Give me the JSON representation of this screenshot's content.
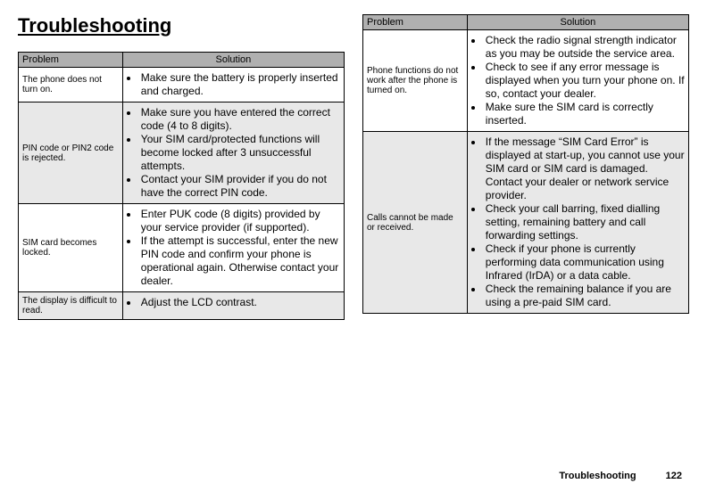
{
  "title": "Troubleshooting",
  "footer": {
    "label": "Troubleshooting",
    "page": "122"
  },
  "table": {
    "headers": {
      "problem": "Problem",
      "solution": "Solution"
    },
    "col_widths": {
      "problem": "32%",
      "solution": "68%"
    }
  },
  "rows_left": [
    {
      "problem": "The phone does not turn on.",
      "shaded": false,
      "items": [
        "Make sure the battery is properly inserted and charged."
      ]
    },
    {
      "problem": "PIN code or PIN2 code is rejected.",
      "shaded": true,
      "items": [
        "Make sure you have entered the correct code (4 to 8 digits).",
        "Your SIM card/protected functions will become locked after 3 unsuccessful attempts.",
        "Contact your SIM provider if you do not have the correct PIN code."
      ]
    },
    {
      "problem": "SIM card becomes locked.",
      "shaded": false,
      "items": [
        "Enter PUK code (8 digits) provided by your service provider (if supported).",
        "If the attempt is successful, enter the new PIN code and confirm your phone is operational again. Otherwise contact your dealer."
      ]
    },
    {
      "problem": "The display is difficult to read.",
      "shaded": true,
      "items": [
        "Adjust the LCD contrast."
      ]
    }
  ],
  "rows_right": [
    {
      "problem": "Phone functions do not work after the phone is turned on.",
      "shaded": false,
      "items": [
        "Check the radio signal strength indicator as you may be outside the service area.",
        "Check to see if any error message is displayed when you turn your phone on. If so, contact your dealer.",
        "Make sure the SIM card is correctly inserted."
      ]
    },
    {
      "problem": "Calls cannot be made or received.",
      "shaded": true,
      "items": [
        "If the message “SIM Card Error” is displayed at start-up, you cannot use your SIM card or SIM card is damaged. Contact your dealer or network service provider.",
        "Check your call barring, fixed dialling setting, remaining battery and call forwarding settings.",
        "Check if your phone is currently performing data communication using Infrared (IrDA) or a data cable.",
        "Check the remaining balance if you are using a pre-paid SIM card."
      ]
    }
  ]
}
